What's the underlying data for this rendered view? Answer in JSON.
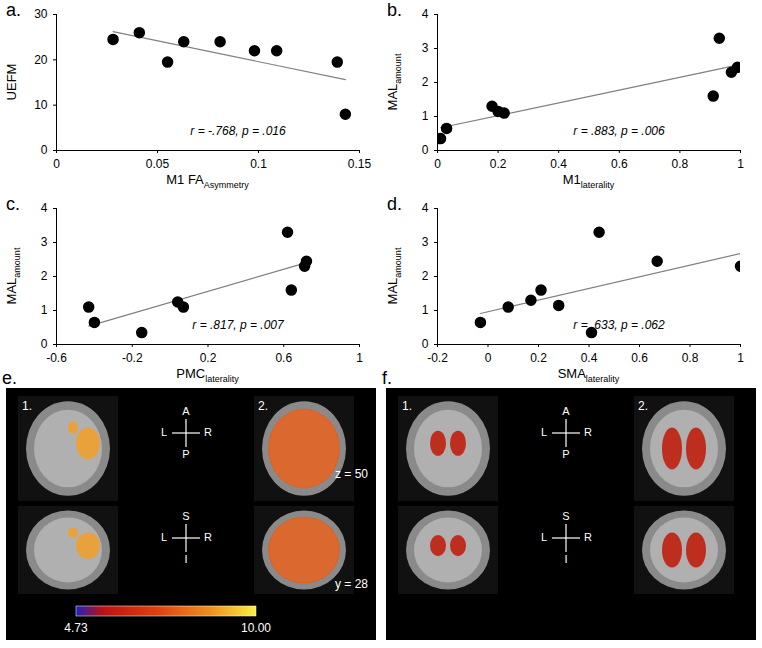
{
  "chart_data": [
    {
      "type": "scatter",
      "title": "a.",
      "color": "#000000",
      "marker": "circle",
      "xlabel": {
        "text": "M1 FA",
        "subscript": "Asymmetry"
      },
      "ylabel": {
        "text": "UEFM",
        "subscript": ""
      },
      "x": [
        0.028,
        0.041,
        0.055,
        0.063,
        0.081,
        0.098,
        0.109,
        0.139,
        0.143
      ],
      "values": [
        24.5,
        26,
        19.5,
        24,
        24,
        22,
        22,
        19.5,
        8
      ],
      "xlim": [
        0,
        0.15
      ],
      "xticks": [
        0,
        0.05,
        0.1,
        0.15
      ],
      "ylim": [
        0,
        30
      ],
      "yticks": [
        0,
        10,
        20,
        30
      ],
      "annotation": "r = -.768, p = .016"
    },
    {
      "type": "scatter",
      "title": "b.",
      "color": "#000000",
      "marker": "circle",
      "xlabel": {
        "text": "M1",
        "subscript": "laterality"
      },
      "ylabel": {
        "text": "MAL",
        "subscript": "amount"
      },
      "x": [
        0.01,
        0.03,
        0.18,
        0.2,
        0.22,
        0.91,
        0.93,
        0.97,
        0.99
      ],
      "values": [
        0.35,
        0.65,
        1.3,
        1.15,
        1.1,
        1.6,
        3.3,
        2.3,
        2.45
      ],
      "xlim": [
        0,
        1
      ],
      "xticks": [
        0,
        0.2,
        0.4,
        0.6,
        0.8,
        1
      ],
      "ylim": [
        0,
        4
      ],
      "yticks": [
        0,
        1,
        2,
        3,
        4
      ],
      "annotation": "r = .883, p = .006"
    },
    {
      "type": "scatter",
      "title": "c.",
      "color": "#000000",
      "marker": "circle",
      "xlabel": {
        "text": "PMC",
        "subscript": "laterality"
      },
      "ylabel": {
        "text": "MAL",
        "subscript": "amount"
      },
      "x": [
        -0.43,
        -0.4,
        -0.15,
        0.04,
        0.07,
        0.62,
        0.64,
        0.71,
        0.72
      ],
      "values": [
        1.1,
        0.65,
        0.35,
        1.25,
        1.1,
        3.3,
        1.6,
        2.3,
        2.45
      ],
      "xlim": [
        -0.6,
        1
      ],
      "xticks": [
        -0.6,
        -0.2,
        0.2,
        0.6,
        1
      ],
      "ylim": [
        0,
        4
      ],
      "yticks": [
        0,
        1,
        2,
        3,
        4
      ],
      "annotation": "r = .817, p = .007"
    },
    {
      "type": "scatter",
      "title": "d.",
      "color": "#000000",
      "marker": "circle",
      "xlabel": {
        "text": "SMA",
        "subscript": "laterality"
      },
      "ylabel": {
        "text": "MAL",
        "subscript": "amount"
      },
      "x": [
        -0.03,
        0.08,
        0.17,
        0.21,
        0.28,
        0.41,
        0.44,
        0.67,
        1.0
      ],
      "values": [
        0.65,
        1.1,
        1.3,
        1.6,
        1.15,
        0.35,
        3.3,
        2.45,
        2.3
      ],
      "xlim": [
        -0.2,
        1
      ],
      "xticks": [
        -0.2,
        0,
        0.2,
        0.4,
        0.6,
        0.8,
        1
      ],
      "ylim": [
        0,
        4
      ],
      "yticks": [
        0,
        1,
        2,
        3,
        4
      ],
      "annotation": "r = .633, p = .062"
    }
  ],
  "images": [
    {
      "panel": "e.",
      "views": [
        "1.",
        "2."
      ],
      "axial_compass": {
        "up": "A",
        "down": "P",
        "left": "L",
        "right": "R"
      },
      "coronal_compass": {
        "up": "S",
        "down": "I",
        "left": "L",
        "right": "R"
      },
      "slice_labels": [
        "z = 50",
        "y = 28"
      ],
      "colorbar": {
        "range": [
          4.73,
          10
        ],
        "ticks": [
          4.73,
          {
            "value": 10,
            "label": "10.00"
          }
        ]
      }
    },
    {
      "panel": "f.",
      "views": [
        "1.",
        "2."
      ],
      "axial_compass": {
        "up": "A",
        "down": "P",
        "left": "L",
        "right": "R"
      },
      "coronal_compass": {
        "up": "S",
        "down": "I",
        "left": "L",
        "right": "R"
      }
    }
  ]
}
